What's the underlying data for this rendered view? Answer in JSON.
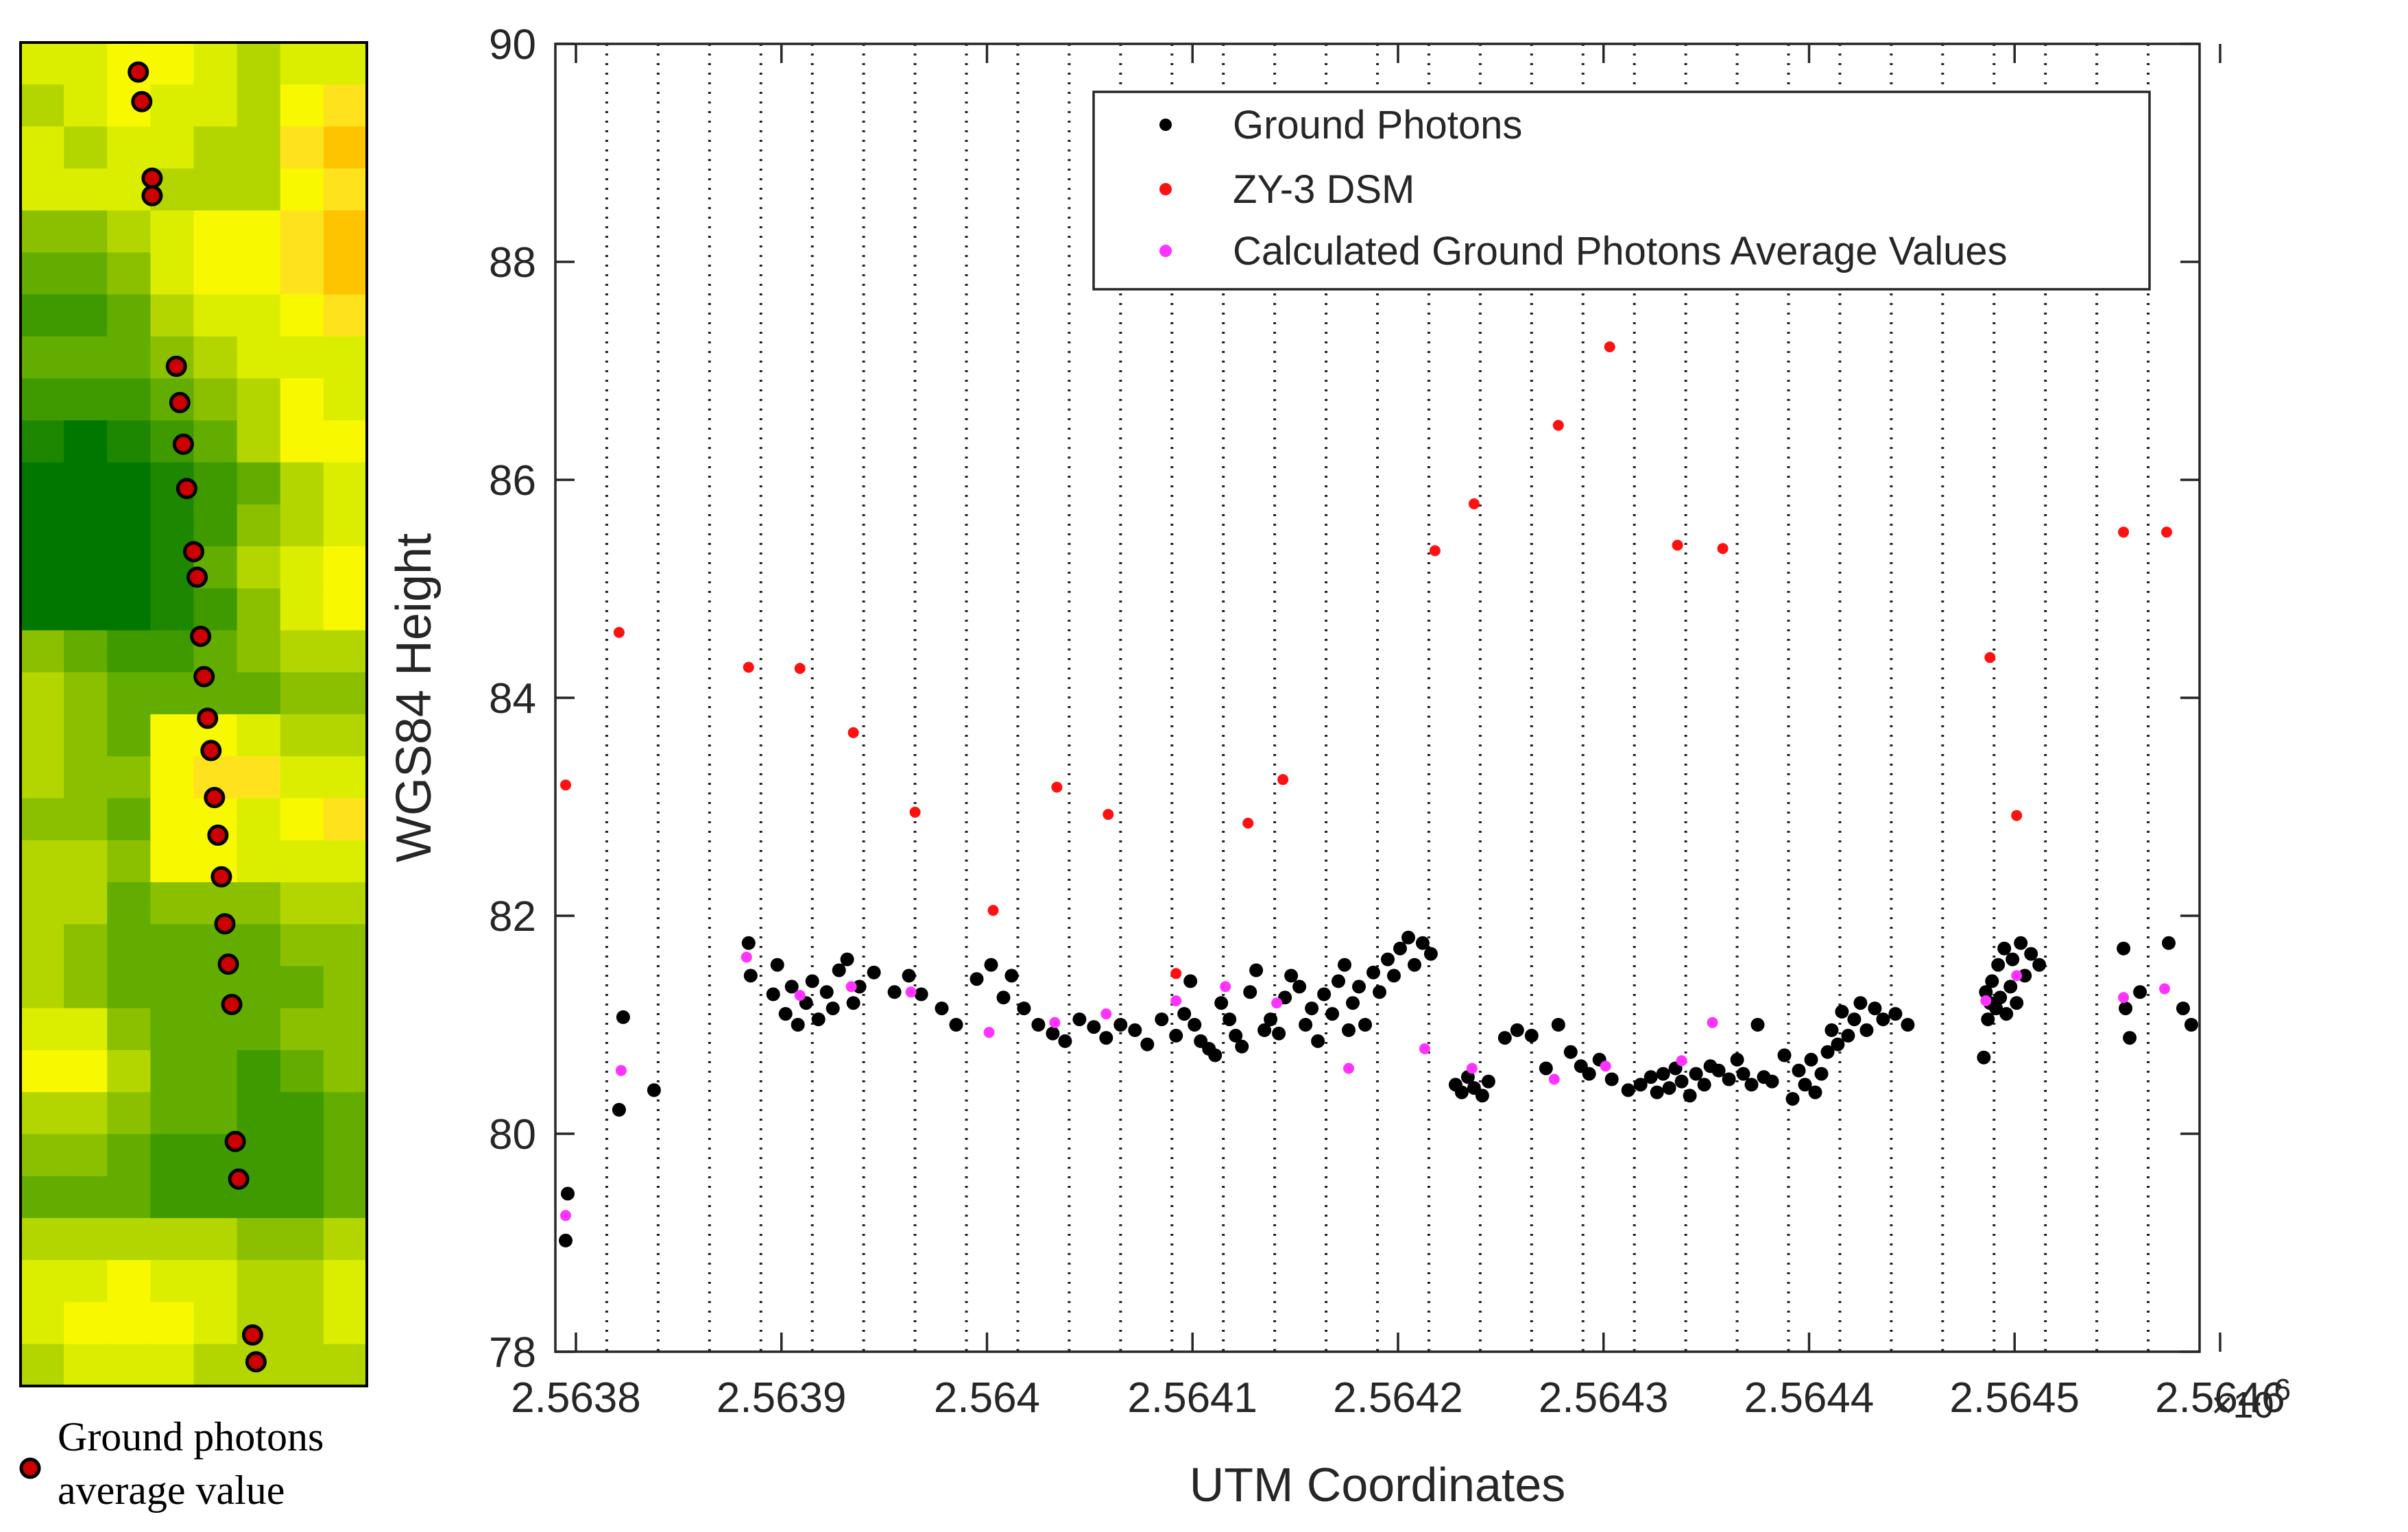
{
  "raster_legend": {
    "line1": "Ground photons",
    "line2": "average value"
  },
  "raster": {
    "rows": 32,
    "cols": 8,
    "palette": [
      "#007800",
      "#1e8700",
      "#3f9a00",
      "#63ad00",
      "#8ac000",
      "#b4d600",
      "#dcee00",
      "#f8f800",
      "#ffe21e",
      "#ffc400"
    ],
    "grid": [
      [
        6,
        6,
        7,
        7,
        6,
        5,
        6,
        6
      ],
      [
        5,
        6,
        7,
        6,
        6,
        5,
        7,
        8
      ],
      [
        6,
        5,
        6,
        6,
        5,
        5,
        8,
        9
      ],
      [
        6,
        6,
        6,
        5,
        5,
        5,
        7,
        8
      ],
      [
        4,
        4,
        5,
        6,
        7,
        7,
        8,
        9
      ],
      [
        3,
        3,
        4,
        6,
        7,
        7,
        8,
        9
      ],
      [
        2,
        2,
        3,
        5,
        6,
        6,
        7,
        8
      ],
      [
        3,
        3,
        3,
        4,
        5,
        6,
        6,
        6
      ],
      [
        2,
        2,
        2,
        3,
        4,
        5,
        7,
        6
      ],
      [
        1,
        0,
        1,
        2,
        3,
        5,
        7,
        7
      ],
      [
        0,
        0,
        0,
        1,
        2,
        3,
        5,
        6
      ],
      [
        0,
        0,
        0,
        1,
        2,
        4,
        5,
        6
      ],
      [
        0,
        0,
        0,
        1,
        3,
        5,
        6,
        7
      ],
      [
        0,
        0,
        0,
        1,
        2,
        4,
        6,
        7
      ],
      [
        4,
        3,
        2,
        2,
        3,
        4,
        5,
        5
      ],
      [
        5,
        4,
        3,
        3,
        3,
        3,
        4,
        4
      ],
      [
        5,
        4,
        3,
        7,
        7,
        6,
        5,
        5
      ],
      [
        5,
        4,
        4,
        7,
        8,
        8,
        6,
        6
      ],
      [
        4,
        4,
        3,
        7,
        7,
        6,
        7,
        8
      ],
      [
        5,
        5,
        4,
        7,
        7,
        6,
        6,
        6
      ],
      [
        5,
        5,
        3,
        4,
        4,
        4,
        5,
        5
      ],
      [
        5,
        4,
        3,
        3,
        3,
        3,
        4,
        4
      ],
      [
        5,
        4,
        3,
        3,
        3,
        3,
        3,
        4
      ],
      [
        6,
        6,
        4,
        3,
        3,
        3,
        4,
        4
      ],
      [
        7,
        7,
        5,
        3,
        3,
        2,
        3,
        4
      ],
      [
        5,
        5,
        4,
        3,
        3,
        2,
        2,
        3
      ],
      [
        4,
        4,
        3,
        2,
        2,
        2,
        2,
        3
      ],
      [
        3,
        3,
        3,
        2,
        2,
        2,
        2,
        3
      ],
      [
        5,
        5,
        5,
        5,
        5,
        4,
        4,
        5
      ],
      [
        6,
        6,
        7,
        6,
        6,
        5,
        5,
        6
      ],
      [
        6,
        7,
        7,
        7,
        6,
        5,
        5,
        6
      ],
      [
        5,
        6,
        6,
        6,
        5,
        5,
        5,
        5
      ]
    ],
    "markers": [
      [
        0.34,
        0.022
      ],
      [
        0.35,
        0.044
      ],
      [
        0.38,
        0.101
      ],
      [
        0.38,
        0.114
      ],
      [
        0.45,
        0.241
      ],
      [
        0.46,
        0.268
      ],
      [
        0.47,
        0.299
      ],
      [
        0.48,
        0.332
      ],
      [
        0.5,
        0.379
      ],
      [
        0.51,
        0.398
      ],
      [
        0.52,
        0.442
      ],
      [
        0.53,
        0.472
      ],
      [
        0.54,
        0.503
      ],
      [
        0.55,
        0.527
      ],
      [
        0.56,
        0.562
      ],
      [
        0.57,
        0.59
      ],
      [
        0.58,
        0.621
      ],
      [
        0.59,
        0.656
      ],
      [
        0.6,
        0.686
      ],
      [
        0.61,
        0.716
      ],
      [
        0.62,
        0.818
      ],
      [
        0.63,
        0.846
      ],
      [
        0.67,
        0.962
      ],
      [
        0.68,
        0.982
      ]
    ]
  },
  "chart_data": {
    "type": "scatter",
    "xlabel": "UTM Coordinates",
    "ylabel": "WGS84 Height",
    "x_exponent_label": "×10",
    "x_exponent_power": "6",
    "xlim": [
      2.56379,
      2.56459
    ],
    "ylim": [
      78,
      90
    ],
    "xticks": [
      2.5638,
      2.5639,
      2.564,
      2.5641,
      2.5642,
      2.5643,
      2.5644,
      2.5645,
      2.5646
    ],
    "xtick_labels": [
      "2.5638",
      "2.5639",
      "2.564",
      "2.5641",
      "2.5642",
      "2.5643",
      "2.5644",
      "2.5645",
      "2.5646"
    ],
    "yticks": [
      78,
      80,
      82,
      84,
      86,
      88,
      90
    ],
    "ytick_labels": [
      "78",
      "80",
      "82",
      "84",
      "86",
      "88",
      "90"
    ],
    "gridlines": "vertical dotted",
    "legend_position": "top-right",
    "series": [
      {
        "name": "Ground Photons",
        "color": "#000000",
        "points": [
          [
            2.563795,
            79.02
          ],
          [
            2.563796,
            79.45
          ],
          [
            2.563821,
            80.22
          ],
          [
            2.563823,
            81.07
          ],
          [
            2.563838,
            80.4
          ],
          [
            2.563884,
            81.75
          ],
          [
            2.563885,
            81.45
          ],
          [
            2.563896,
            81.28
          ],
          [
            2.563898,
            81.55
          ],
          [
            2.563902,
            81.1
          ],
          [
            2.563905,
            81.35
          ],
          [
            2.563908,
            81.0
          ],
          [
            2.563912,
            81.2
          ],
          [
            2.563915,
            81.4
          ],
          [
            2.563918,
            81.05
          ],
          [
            2.563922,
            81.3
          ],
          [
            2.563925,
            81.15
          ],
          [
            2.563928,
            81.5
          ],
          [
            2.563932,
            81.6
          ],
          [
            2.563935,
            81.2
          ],
          [
            2.563938,
            81.35
          ],
          [
            2.563945,
            81.48
          ],
          [
            2.563955,
            81.3
          ],
          [
            2.563962,
            81.45
          ],
          [
            2.563968,
            81.28
          ],
          [
            2.563978,
            81.15
          ],
          [
            2.563985,
            81.0
          ],
          [
            2.563995,
            81.42
          ],
          [
            2.564002,
            81.55
          ],
          [
            2.564008,
            81.25
          ],
          [
            2.564012,
            81.45
          ],
          [
            2.564018,
            81.15
          ],
          [
            2.564025,
            81.0
          ],
          [
            2.564032,
            80.92
          ],
          [
            2.564038,
            80.85
          ],
          [
            2.564045,
            81.05
          ],
          [
            2.564052,
            80.98
          ],
          [
            2.564058,
            80.88
          ],
          [
            2.564065,
            81.0
          ],
          [
            2.564072,
            80.95
          ],
          [
            2.564078,
            80.82
          ],
          [
            2.564085,
            81.05
          ],
          [
            2.564092,
            80.9
          ],
          [
            2.564096,
            81.1
          ],
          [
            2.564099,
            81.4
          ],
          [
            2.564101,
            81.0
          ],
          [
            2.564104,
            80.85
          ],
          [
            2.564108,
            80.78
          ],
          [
            2.564111,
            80.72
          ],
          [
            2.564114,
            81.2
          ],
          [
            2.564118,
            81.05
          ],
          [
            2.564121,
            80.9
          ],
          [
            2.564124,
            80.8
          ],
          [
            2.564128,
            81.3
          ],
          [
            2.564131,
            81.5
          ],
          [
            2.564135,
            80.95
          ],
          [
            2.564138,
            81.05
          ],
          [
            2.564142,
            80.92
          ],
          [
            2.564145,
            81.25
          ],
          [
            2.564148,
            81.45
          ],
          [
            2.564152,
            81.35
          ],
          [
            2.564155,
            81.0
          ],
          [
            2.564158,
            81.15
          ],
          [
            2.564161,
            80.85
          ],
          [
            2.564164,
            81.28
          ],
          [
            2.564168,
            81.1
          ],
          [
            2.564171,
            81.4
          ],
          [
            2.564174,
            81.55
          ],
          [
            2.564176,
            80.95
          ],
          [
            2.564178,
            81.2
          ],
          [
            2.564181,
            81.35
          ],
          [
            2.564184,
            81.0
          ],
          [
            2.564188,
            81.48
          ],
          [
            2.564191,
            81.3
          ],
          [
            2.564195,
            81.6
          ],
          [
            2.564198,
            81.45
          ],
          [
            2.564201,
            81.7
          ],
          [
            2.564205,
            81.8
          ],
          [
            2.564208,
            81.55
          ],
          [
            2.564212,
            81.75
          ],
          [
            2.564216,
            81.65
          ],
          [
            2.564228,
            80.45
          ],
          [
            2.564231,
            80.38
          ],
          [
            2.564234,
            80.52
          ],
          [
            2.564237,
            80.42
          ],
          [
            2.564241,
            80.35
          ],
          [
            2.564244,
            80.48
          ],
          [
            2.564252,
            80.88
          ],
          [
            2.564258,
            80.95
          ],
          [
            2.564265,
            80.9
          ],
          [
            2.564272,
            80.6
          ],
          [
            2.564278,
            81.0
          ],
          [
            2.564284,
            80.75
          ],
          [
            2.564289,
            80.62
          ],
          [
            2.564293,
            80.55
          ],
          [
            2.564298,
            80.68
          ],
          [
            2.564304,
            80.5
          ],
          [
            2.564312,
            80.4
          ],
          [
            2.564318,
            80.45
          ],
          [
            2.564323,
            80.52
          ],
          [
            2.564326,
            80.38
          ],
          [
            2.564329,
            80.55
          ],
          [
            2.564332,
            80.42
          ],
          [
            2.564335,
            80.6
          ],
          [
            2.564338,
            80.48
          ],
          [
            2.564342,
            80.35
          ],
          [
            2.564345,
            80.55
          ],
          [
            2.564349,
            80.45
          ],
          [
            2.564352,
            80.62
          ],
          [
            2.564356,
            80.58
          ],
          [
            2.564361,
            80.5
          ],
          [
            2.564365,
            80.68
          ],
          [
            2.564368,
            80.55
          ],
          [
            2.564372,
            80.45
          ],
          [
            2.564375,
            81.0
          ],
          [
            2.564378,
            80.52
          ],
          [
            2.564382,
            80.48
          ],
          [
            2.564388,
            80.72
          ],
          [
            2.564392,
            80.32
          ],
          [
            2.564395,
            80.58
          ],
          [
            2.564398,
            80.45
          ],
          [
            2.564401,
            80.68
          ],
          [
            2.564403,
            80.38
          ],
          [
            2.564406,
            80.55
          ],
          [
            2.564409,
            80.75
          ],
          [
            2.564411,
            80.95
          ],
          [
            2.564414,
            80.82
          ],
          [
            2.564416,
            81.12
          ],
          [
            2.564419,
            80.9
          ],
          [
            2.564422,
            81.05
          ],
          [
            2.564425,
            81.2
          ],
          [
            2.564428,
            80.95
          ],
          [
            2.564432,
            81.15
          ],
          [
            2.564436,
            81.05
          ],
          [
            2.564442,
            81.1
          ],
          [
            2.564448,
            81.0
          ],
          [
            2.564485,
            80.7
          ],
          [
            2.564486,
            81.3
          ],
          [
            2.564487,
            81.05
          ],
          [
            2.564488,
            81.2
          ],
          [
            2.564489,
            81.4
          ],
          [
            2.564491,
            81.15
          ],
          [
            2.564492,
            81.55
          ],
          [
            2.564493,
            81.25
          ],
          [
            2.564495,
            81.7
          ],
          [
            2.564496,
            81.1
          ],
          [
            2.564498,
            81.35
          ],
          [
            2.564499,
            81.6
          ],
          [
            2.564501,
            81.2
          ],
          [
            2.564503,
            81.75
          ],
          [
            2.564505,
            81.45
          ],
          [
            2.564508,
            81.65
          ],
          [
            2.564512,
            81.55
          ],
          [
            2.564553,
            81.7
          ],
          [
            2.564554,
            81.15
          ],
          [
            2.564556,
            80.88
          ],
          [
            2.564561,
            81.3
          ],
          [
            2.564575,
            81.75
          ],
          [
            2.564582,
            81.15
          ],
          [
            2.564586,
            81.0
          ]
        ]
      },
      {
        "name": "ZY-3 DSM",
        "color": "#ff1111",
        "points": [
          [
            2.563795,
            83.2
          ],
          [
            2.563821,
            84.6
          ],
          [
            2.563884,
            84.28
          ],
          [
            2.563909,
            84.27
          ],
          [
            2.563935,
            83.68
          ],
          [
            2.563965,
            82.95
          ],
          [
            2.564003,
            82.05
          ],
          [
            2.564034,
            83.18
          ],
          [
            2.564059,
            82.93
          ],
          [
            2.564092,
            81.47
          ],
          [
            2.564127,
            82.85
          ],
          [
            2.564144,
            83.25
          ],
          [
            2.564218,
            85.35
          ],
          [
            2.564237,
            85.78
          ],
          [
            2.564278,
            86.5
          ],
          [
            2.564303,
            87.22
          ],
          [
            2.564336,
            85.4
          ],
          [
            2.564358,
            85.37
          ],
          [
            2.564488,
            84.37
          ],
          [
            2.564501,
            82.92
          ],
          [
            2.564553,
            85.52
          ],
          [
            2.564574,
            85.52
          ]
        ]
      },
      {
        "name": "Calculated Ground Photons Average Values",
        "color": "#ff33ff",
        "points": [
          [
            2.563795,
            79.25
          ],
          [
            2.563822,
            80.58
          ],
          [
            2.563883,
            81.62
          ],
          [
            2.563909,
            81.27
          ],
          [
            2.563934,
            81.35
          ],
          [
            2.563963,
            81.3
          ],
          [
            2.564001,
            80.93
          ],
          [
            2.564033,
            81.02
          ],
          [
            2.564058,
            81.1
          ],
          [
            2.564092,
            81.22
          ],
          [
            2.564116,
            81.35
          ],
          [
            2.564141,
            81.2
          ],
          [
            2.564176,
            80.6
          ],
          [
            2.564213,
            80.78
          ],
          [
            2.564236,
            80.6
          ],
          [
            2.564276,
            80.5
          ],
          [
            2.564301,
            80.62
          ],
          [
            2.564338,
            80.67
          ],
          [
            2.564353,
            81.02
          ],
          [
            2.564486,
            81.22
          ],
          [
            2.564501,
            81.45
          ],
          [
            2.564553,
            81.25
          ],
          [
            2.564573,
            81.33
          ]
        ]
      }
    ]
  }
}
